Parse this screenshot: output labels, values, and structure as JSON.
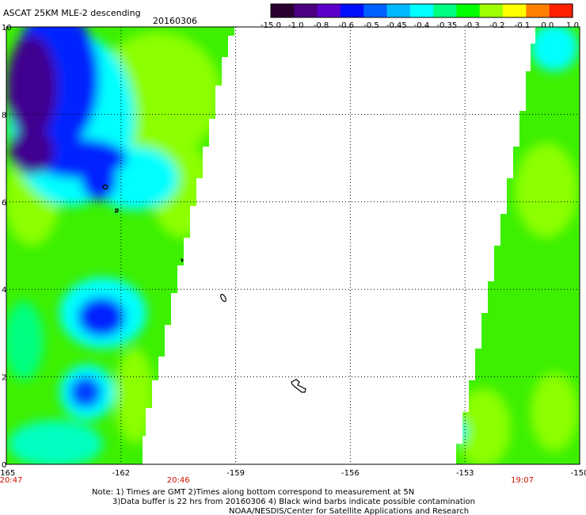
{
  "header": {
    "title": "ASCAT 25KM MLE-2 descending",
    "date": "20160306"
  },
  "colorbar": {
    "labels": [
      "-15.0",
      "-1.0",
      "-0.8",
      "-0.6",
      "-0.5",
      "-0.45",
      "-0.4",
      "-0.35",
      "-0.3",
      "-0.2",
      "-0.1",
      "0.0",
      "1.0"
    ],
    "colors": [
      "#2a0030",
      "#4a0080",
      "#5a00c8",
      "#0010ff",
      "#0060ff",
      "#00b8ff",
      "#00ffff",
      "#00ff80",
      "#00ff00",
      "#a0ff00",
      "#ffff00",
      "#ff8000",
      "#ff2000"
    ]
  },
  "map": {
    "lon_labels": [
      "-165",
      "-162",
      "-159",
      "-156",
      "-153",
      "-150"
    ],
    "lat_labels": [
      "0",
      "2",
      "4",
      "6",
      "8",
      "10"
    ],
    "lon_range": [
      -165,
      -150
    ],
    "lat_range": [
      0,
      10
    ],
    "times": [
      {
        "label": "20:47",
        "lon": -165
      },
      {
        "label": "20:46",
        "lon": -160.5
      },
      {
        "label": "19:07",
        "lon": -151.5
      }
    ],
    "swath_colors": {
      "green": "#3cf000",
      "lime": "#8cff00",
      "cyan": "#00ffff",
      "blue": "#0020ff",
      "purple": "#400090"
    }
  },
  "notes": {
    "line1": "Note: 1) Times are GMT 2)Times along bottom correspond to measurement at 5N",
    "line2": "3)Data buffer is 22 hrs from 20160306 4) Black wind barbs indicate possible contamination",
    "line3": "NOAA/NESDIS/Center for Satellite Applications and Research"
  }
}
